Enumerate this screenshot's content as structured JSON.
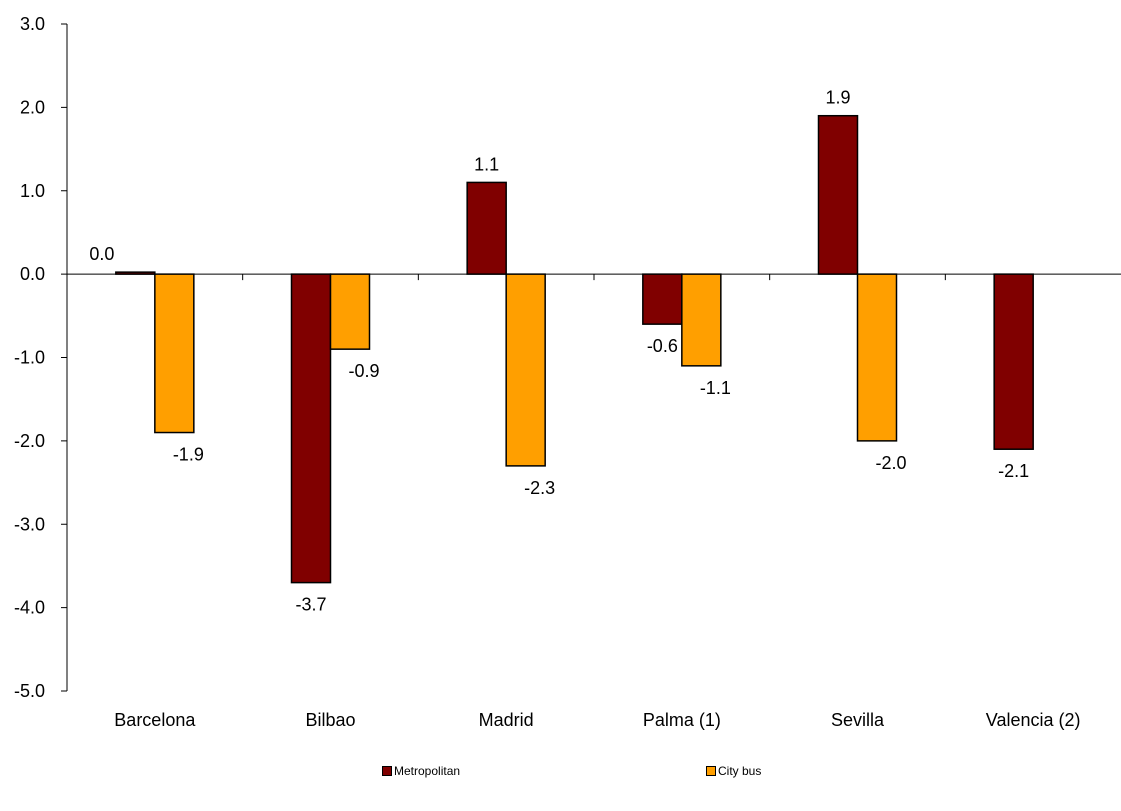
{
  "chart_data": {
    "type": "bar",
    "categories": [
      "Barcelona",
      "Bilbao",
      "Madrid",
      "Palma (1)",
      "Sevilla",
      "Valencia (2)"
    ],
    "series": [
      {
        "name": "Metropolitan",
        "color": "#800000",
        "values": [
          0.0,
          -3.7,
          1.1,
          -0.6,
          1.9,
          -2.1
        ],
        "labels": [
          "0.0",
          "-3.7",
          "1.1",
          "-0.6",
          "1.9",
          "-2.1"
        ]
      },
      {
        "name": "City bus",
        "color": "#FF9F00",
        "values": [
          -1.9,
          -0.9,
          -2.3,
          -1.1,
          -2.0,
          null
        ],
        "labels": [
          "-1.9",
          "-0.9",
          "-2.3",
          "-1.1",
          "-2.0",
          null
        ]
      }
    ],
    "ylim": [
      -5.0,
      3.0
    ],
    "yticks": [
      "3.0",
      "2.0",
      "1.0",
      "0.0",
      "-1.0",
      "-2.0",
      "-3.0",
      "-4.0",
      "-5.0"
    ],
    "ytick_values": [
      3,
      2,
      1,
      0,
      -1,
      -2,
      -3,
      -4,
      -5
    ],
    "title": "",
    "xlabel": "",
    "ylabel": "",
    "grid": false,
    "legend_position": "bottom"
  }
}
